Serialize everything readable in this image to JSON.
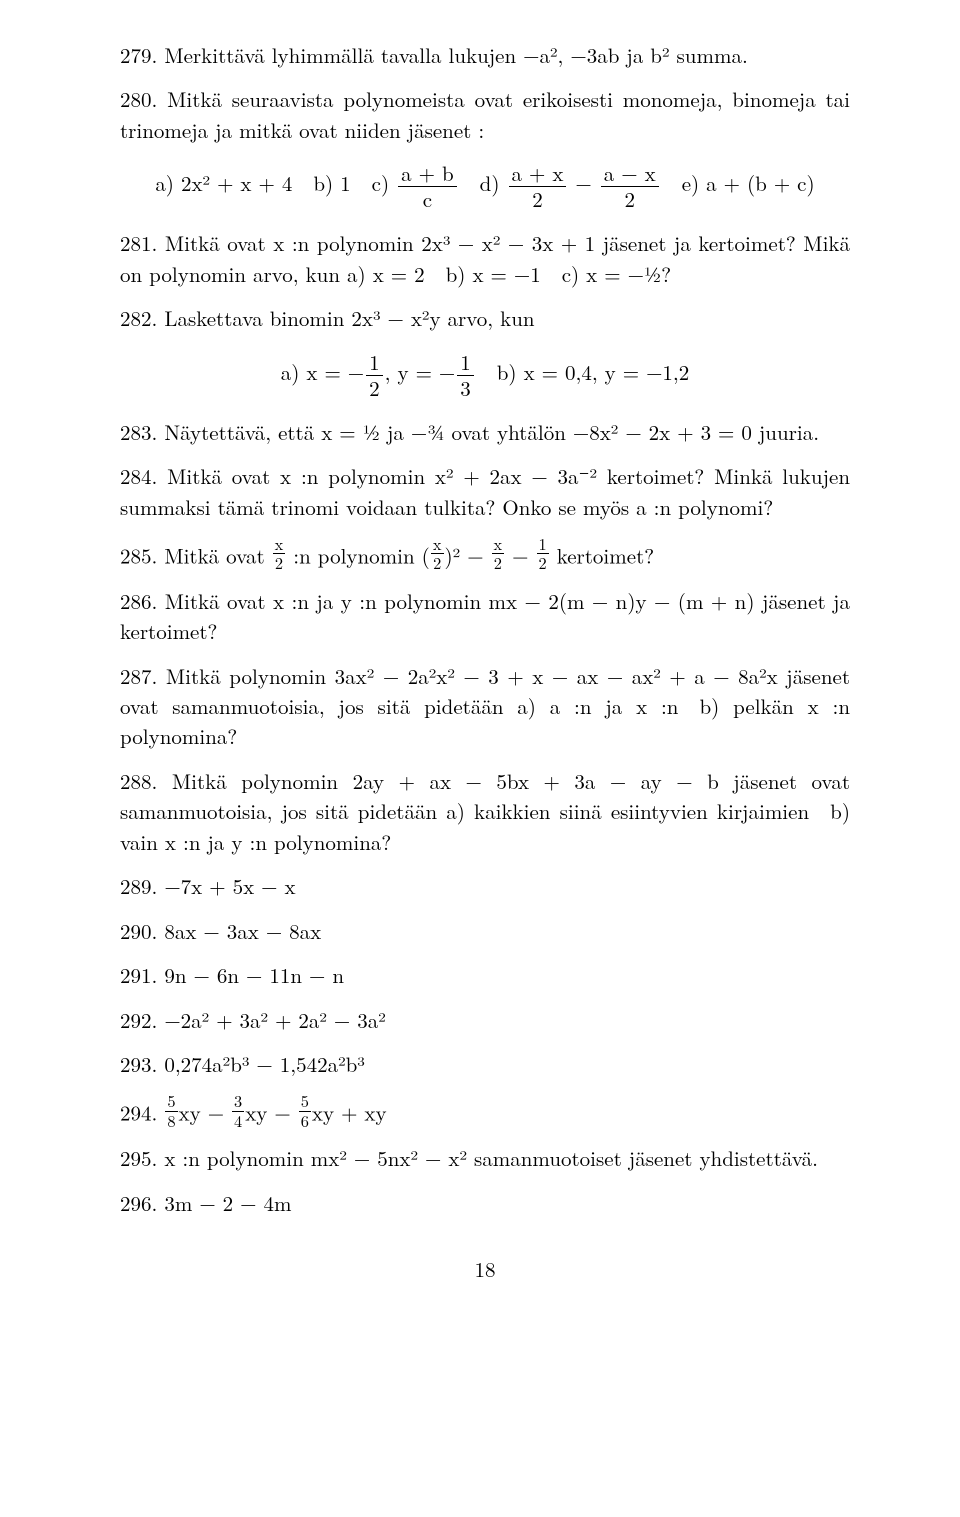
{
  "page_number": "18",
  "p279": "279. Merkittävä lyhimmällä tavalla lukujen −a², −3ab ja b² summa.",
  "p280_a": "280. Mitkä seuraavista polynomeista ovat erikoisesti monomeja, binomeja tai trinomeja ja mitkä ovat niiden jäsenet :",
  "p280_b_pre": "a) 2x² + x + 4 b) 1 c) ",
  "p280_b_mid": " d) ",
  "p280_b_mid2": " − ",
  "p280_b_post": " e) a + (b + c)",
  "f1_num": "a + b",
  "f1_den": "c",
  "f2_num": "a + x",
  "f2_den": "2",
  "f3_num": "a − x",
  "f3_den": "2",
  "p281": "281. Mitkä ovat x :n polynomin 2x³ − x² − 3x + 1 jäsenet ja kertoimet? Mikä on polynomin arvo, kun a) x = 2 b) x = −1 c) x = −½?",
  "p282": "282. Laskettava binomin 2x³ − x²y arvo, kun",
  "p282_disp_a": "a) x = −",
  "p282_disp_b": ", y = −",
  "p282_disp_c": " b) x = 0,4, y = −1,2",
  "f4_num": "1",
  "f4_den": "2",
  "f5_num": "1",
  "f5_den": "3",
  "p283": "283. Näytettävä, että x = ½ ja −¾ ovat yhtälön −8x² − 2x + 3 = 0 juuria.",
  "p284": "284. Mitkä ovat x :n polynomin x² + 2ax − 3a⁻² kertoimet? Minkä lukujen summaksi tämä trinomi voidaan tulkita? Onko se myös a :n polynomi?",
  "p285_a": "285. Mitkä ovat ",
  "p285_b": " :n polynomin (",
  "p285_c": ")² − ",
  "p285_d": " − ",
  "p285_e": " kertoimet?",
  "sf_x_num": "x",
  "sf_x_den": "2",
  "sf_1_num": "1",
  "sf_1_den": "2",
  "p286": "286. Mitkä ovat x :n ja y :n polynomin mx − 2(m − n)y − (m + n) jäsenet ja kertoimet?",
  "p287": "287. Mitkä polynomin 3ax² − 2a²x² − 3 + x − ax − ax² + a − 8a²x jäsenet ovat samanmuotoisia, jos sitä pidetään a) a :n ja x :n b) pelkän x :n polynomina?",
  "p288": "288. Mitkä polynomin 2ay + ax − 5bx + 3a − ay − b jäsenet ovat samanmuotoisia, jos sitä pidetään a) kaikkien siinä esiintyvien kirjaimien b) vain x :n ja y :n polynomina?",
  "p289": "289. −7x + 5x − x",
  "p290": "290. 8ax − 3ax − 8ax",
  "p291": "291. 9n − 6n − 11n − n",
  "p292": "292. −2a² + 3a² + 2a² − 3a²",
  "p293": "293. 0,274a²b³ − 1,542a²b³",
  "p294_a": "294. ",
  "p294_b": "xy − ",
  "p294_c": "xy − ",
  "p294_d": "xy + xy",
  "sf58_num": "5",
  "sf58_den": "8",
  "sf34_num": "3",
  "sf34_den": "4",
  "sf56_num": "5",
  "sf56_den": "6",
  "p295": "295. x :n polynomin mx² − 5nx² − x² samanmuotoiset jäsenet yhdistettävä.",
  "p296": "296. 3m − 2 − 4m"
}
